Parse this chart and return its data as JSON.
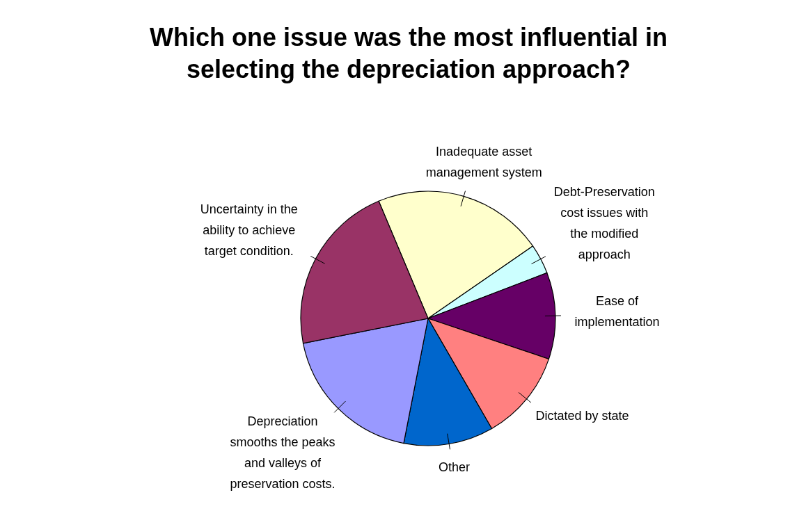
{
  "chart_data": {
    "type": "pie",
    "title": "Which one issue was the most influential in selecting the depreciation approach?",
    "categories": [
      "Inadequate asset management system",
      "Debt-Preservation cost issues with the modified approach",
      "Ease of implementation",
      "Dictated by state",
      "Other",
      "Depreciation smooths the peaks and valleys of preservation costs.",
      "Uncertainty in the ability to achieve target condition."
    ],
    "values": [
      21.7,
      3.8,
      11.0,
      11.5,
      11.4,
      18.8,
      21.8
    ],
    "colors": [
      "#ffffcc",
      "#ccffff",
      "#660066",
      "#ff8080",
      "#0066cc",
      "#9999ff",
      "#993366"
    ]
  }
}
